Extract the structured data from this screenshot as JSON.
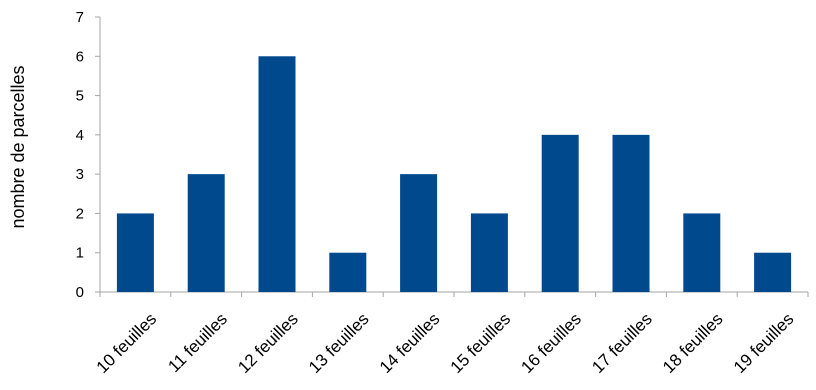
{
  "chart_data": {
    "type": "bar",
    "title": "",
    "xlabel": "",
    "ylabel": "nombre de parcelles",
    "categories": [
      "10 feuilles",
      "11 feuilles",
      "12 feuilles",
      "13 feuilles",
      "14 feuilles",
      "15 feuilles",
      "16 feuilles",
      "17 feuilles",
      "18 feuilles",
      "19 feuilles"
    ],
    "values": [
      2,
      3,
      6,
      1,
      3,
      2,
      4,
      4,
      2,
      1
    ],
    "ylim": [
      0,
      7
    ],
    "yticks": [
      "0",
      "1",
      "2",
      "3",
      "4",
      "5",
      "6",
      "7"
    ],
    "grid": false,
    "legend": "none",
    "colors": {
      "bar": "#00498C",
      "axis": "#A6A6A6"
    }
  }
}
